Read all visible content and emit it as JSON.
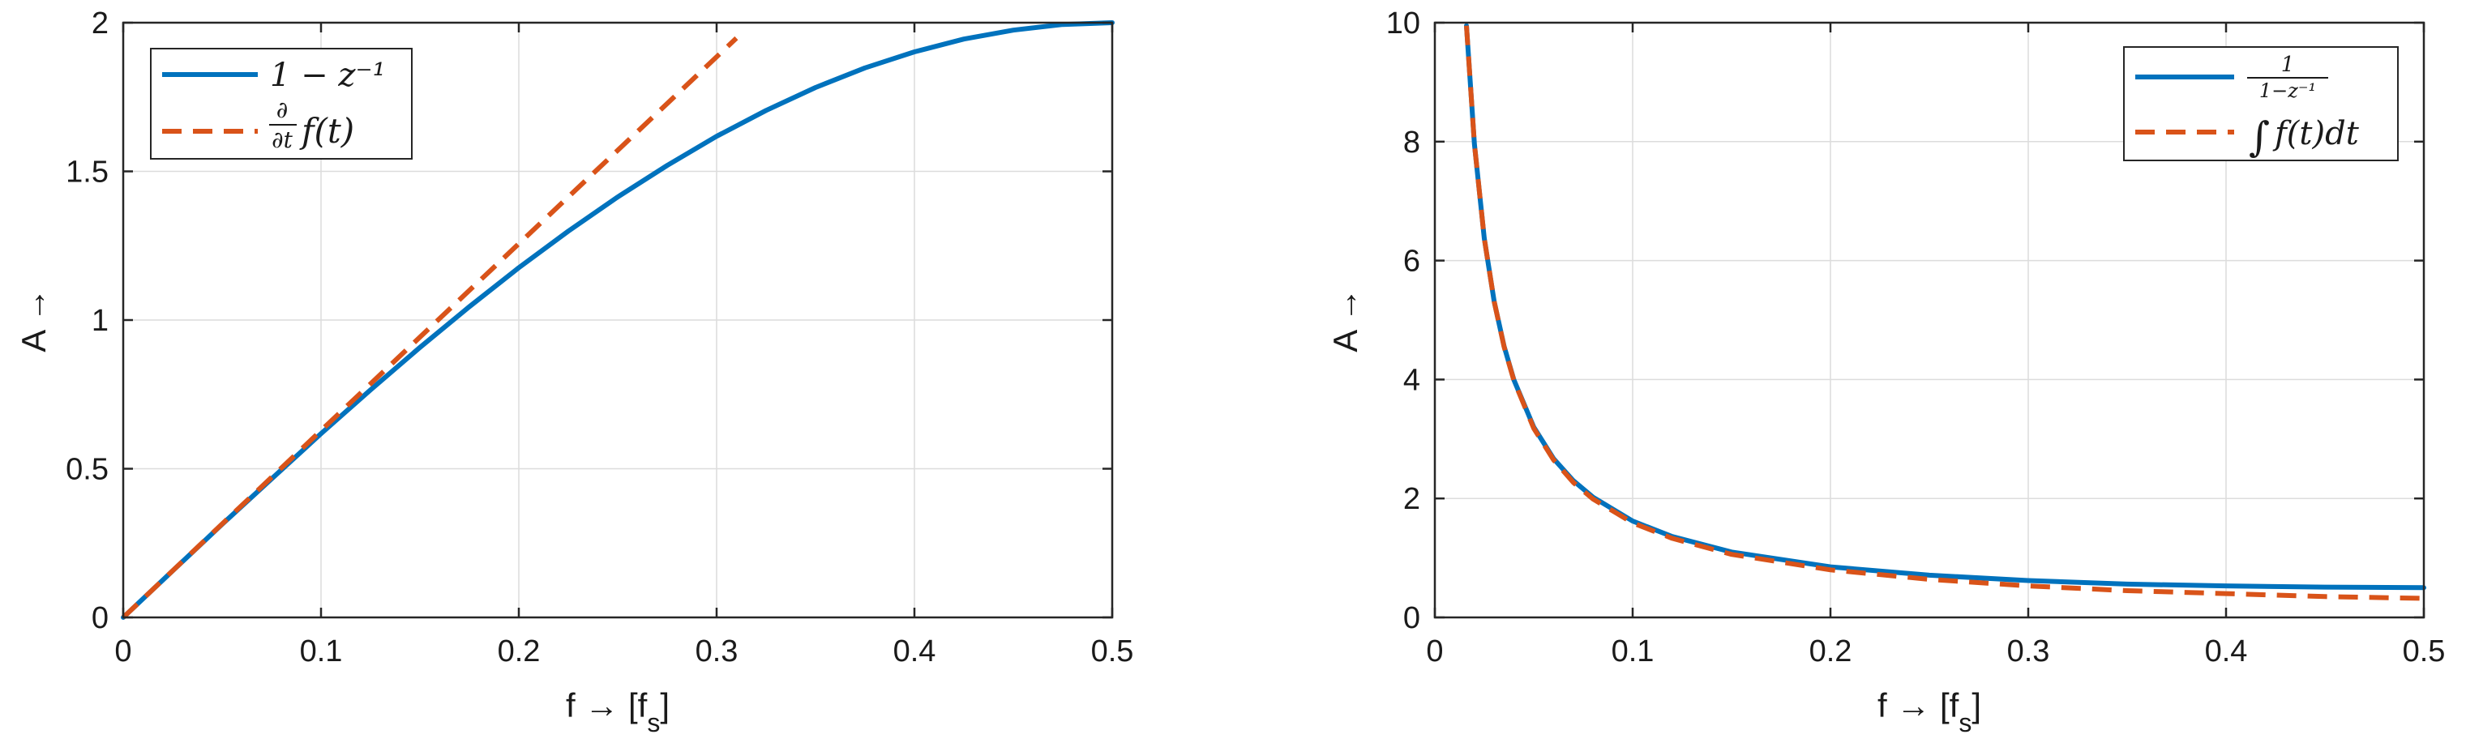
{
  "colors": {
    "blue": "#0072BD",
    "orange": "#D95319",
    "grid": "#dcdcdc",
    "axis": "#262626"
  },
  "chart_data": [
    {
      "type": "line",
      "title": "",
      "xlabel": "f → [f",
      "xlabel_sub": "s",
      "xlabel_end": "]",
      "ylabel": "A →",
      "xlim": [
        0,
        0.5
      ],
      "ylim": [
        0,
        2
      ],
      "xticks": [
        0,
        0.1,
        0.2,
        0.3,
        0.4,
        0.5
      ],
      "yticks": [
        0,
        0.5,
        1,
        1.5,
        2
      ],
      "xtick_labels": [
        "0",
        "0.1",
        "0.2",
        "0.3",
        "0.4",
        "0.5"
      ],
      "ytick_labels": [
        "0",
        "0.5",
        "1",
        "1.5",
        "2"
      ],
      "grid": true,
      "legend_position": "top-left",
      "series": [
        {
          "name": "1 − z⁻¹",
          "color": "#0072BD",
          "style": "solid",
          "x": [
            0,
            0.025,
            0.05,
            0.075,
            0.1,
            0.125,
            0.15,
            0.175,
            0.2,
            0.225,
            0.25,
            0.275,
            0.3,
            0.325,
            0.35,
            0.375,
            0.4,
            0.425,
            0.45,
            0.475,
            0.5
          ],
          "y": [
            0,
            0.157,
            0.313,
            0.466,
            0.618,
            0.765,
            0.908,
            1.045,
            1.176,
            1.299,
            1.414,
            1.52,
            1.618,
            1.705,
            1.782,
            1.848,
            1.902,
            1.945,
            1.975,
            1.994,
            2.0
          ]
        },
        {
          "name": "∂/∂t f(t)",
          "color": "#D95319",
          "style": "dashed",
          "x": [
            0,
            0.31
          ],
          "y": [
            0,
            1.948
          ]
        }
      ]
    },
    {
      "type": "line",
      "title": "",
      "xlabel": "f → [f",
      "xlabel_sub": "s",
      "xlabel_end": "]",
      "ylabel": "A →",
      "xlim": [
        0,
        0.5
      ],
      "ylim": [
        0,
        10
      ],
      "xticks": [
        0,
        0.1,
        0.2,
        0.3,
        0.4,
        0.5
      ],
      "yticks": [
        0,
        2,
        4,
        6,
        8,
        10
      ],
      "xtick_labels": [
        "0",
        "0.1",
        "0.2",
        "0.3",
        "0.4",
        "0.5"
      ],
      "ytick_labels": [
        "0",
        "2",
        "4",
        "6",
        "8",
        "10"
      ],
      "grid": true,
      "legend_position": "top-right",
      "series": [
        {
          "name": "1/(1−z⁻¹)",
          "color": "#0072BD",
          "style": "solid",
          "x": [
            0.016,
            0.02,
            0.025,
            0.03,
            0.035,
            0.04,
            0.05,
            0.06,
            0.07,
            0.08,
            0.1,
            0.12,
            0.15,
            0.2,
            0.25,
            0.3,
            0.35,
            0.4,
            0.45,
            0.5
          ],
          "y": [
            9.95,
            7.96,
            6.37,
            5.31,
            4.56,
            3.99,
            3.2,
            2.67,
            2.3,
            2.02,
            1.62,
            1.36,
            1.1,
            0.85,
            0.71,
            0.62,
            0.56,
            0.53,
            0.51,
            0.5
          ]
        },
        {
          "name": "∫ f(t)dt",
          "color": "#D95319",
          "style": "dashed",
          "x": [
            0.016,
            0.02,
            0.025,
            0.03,
            0.035,
            0.04,
            0.05,
            0.06,
            0.07,
            0.08,
            0.1,
            0.12,
            0.15,
            0.2,
            0.25,
            0.3,
            0.35,
            0.4,
            0.45,
            0.5
          ],
          "y": [
            9.95,
            7.96,
            6.37,
            5.31,
            4.55,
            3.98,
            3.18,
            2.65,
            2.27,
            1.99,
            1.59,
            1.33,
            1.06,
            0.8,
            0.64,
            0.53,
            0.45,
            0.4,
            0.35,
            0.32
          ]
        }
      ]
    }
  ]
}
